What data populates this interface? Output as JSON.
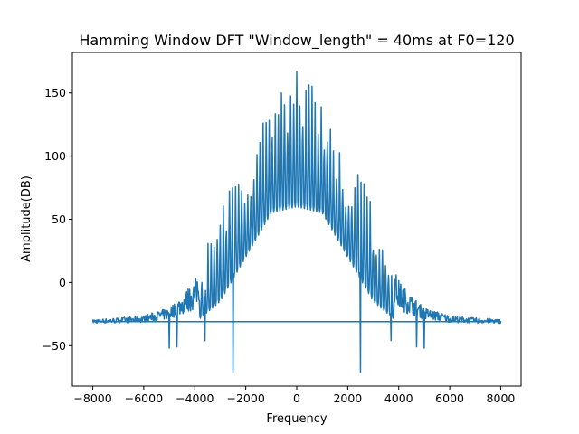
{
  "chart_data": {
    "type": "line",
    "title": "Hamming Window DFT \"Window_length\" = 40ms at F0=120",
    "xlabel": "Frequency",
    "ylabel": "Amplitude(DB)",
    "xlim": [
      -8800,
      8800
    ],
    "ylim": [
      -82,
      182
    ],
    "grid": false,
    "x_ticks": [
      -8000,
      -6000,
      -4000,
      -2000,
      0,
      2000,
      4000,
      6000,
      8000
    ],
    "x_tick_labels": [
      "−8000",
      "−6000",
      "−4000",
      "−2000",
      "0",
      "2000",
      "4000",
      "6000",
      "8000"
    ],
    "y_ticks": [
      -50,
      0,
      50,
      100,
      150
    ],
    "y_tick_labels": [
      "−50",
      "0",
      "50",
      "100",
      "150"
    ],
    "series": [
      {
        "color": "#1f77b4",
        "f0": 120,
        "x_range": [
          -8000,
          8000
        ],
        "envelope_peaks": [
          [
            -8000,
            -29
          ],
          [
            -7000,
            -28
          ],
          [
            -6000,
            -26
          ],
          [
            -5000,
            -20
          ],
          [
            -4500,
            -10
          ],
          [
            -4000,
            2
          ],
          [
            -3500,
            30
          ],
          [
            -3000,
            55
          ],
          [
            -2500,
            100
          ],
          [
            -2000,
            80
          ],
          [
            -1500,
            120
          ],
          [
            -1000,
            140
          ],
          [
            -500,
            160
          ],
          [
            0,
            172
          ],
          [
            500,
            160
          ],
          [
            1000,
            140
          ],
          [
            1500,
            120
          ],
          [
            2000,
            80
          ],
          [
            2500,
            100
          ],
          [
            3000,
            55
          ],
          [
            3500,
            30
          ],
          [
            4000,
            2
          ],
          [
            4500,
            -10
          ],
          [
            5000,
            -20
          ],
          [
            6000,
            -26
          ],
          [
            7000,
            -28
          ],
          [
            8000,
            -29
          ]
        ],
        "envelope_troughs": [
          [
            -8000,
            -34
          ],
          [
            -6000,
            -34
          ],
          [
            -4000,
            -32
          ],
          [
            -3000,
            -15
          ],
          [
            -2000,
            20
          ],
          [
            -1000,
            55
          ],
          [
            0,
            60
          ],
          [
            1000,
            55
          ],
          [
            2000,
            20
          ],
          [
            3000,
            -15
          ],
          [
            4000,
            -32
          ],
          [
            6000,
            -34
          ],
          [
            8000,
            -34
          ]
        ],
        "spikes_down": [
          [
            -5000,
            -52
          ],
          [
            -4700,
            -51
          ],
          [
            -3600,
            -46
          ],
          [
            -2500,
            -71
          ],
          [
            2500,
            -71
          ],
          [
            3700,
            -46
          ],
          [
            4700,
            -51
          ],
          [
            5000,
            -52
          ]
        ],
        "connector": {
          "x": [
            -2500,
            2500
          ],
          "y": -31
        }
      }
    ]
  }
}
